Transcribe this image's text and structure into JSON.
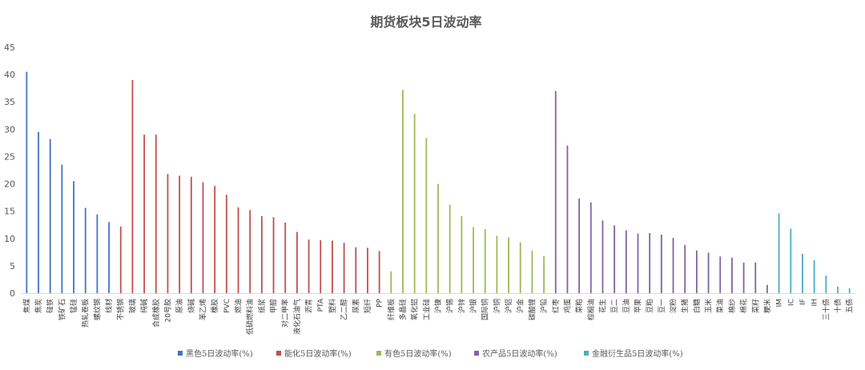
{
  "chart_data": {
    "type": "bar",
    "title": "期货板块5日波动率",
    "xlabel": "",
    "ylabel": "",
    "ylim": [
      0,
      45
    ],
    "yticks": [
      0,
      5,
      10,
      15,
      20,
      25,
      30,
      35,
      40,
      45
    ],
    "grid": false,
    "legend_position": "bottom",
    "series": [
      {
        "name": "黑色5日波动率(%)",
        "color": "#4472C4",
        "categories": [
          "焦煤",
          "焦炭",
          "硅铁",
          "铁矿石",
          "锰硅",
          "热轧卷板",
          "螺纹钢",
          "线材"
        ],
        "values": [
          40.5,
          29.5,
          28.2,
          23.5,
          20.5,
          15.6,
          14.4,
          13.0
        ]
      },
      {
        "name": "能化5日波动率(%)",
        "color": "#C0504D",
        "categories": [
          "不锈钢",
          "玻璃",
          "纯碱",
          "合成橡胶",
          "20号胶",
          "原油",
          "烧碱",
          "苯乙烯",
          "橡胶",
          "PVC",
          "燃油",
          "低硫燃料油",
          "纸浆",
          "甲醇",
          "对二甲苯",
          "液化石油气",
          "沥青",
          "PTA",
          "塑料",
          "乙二醇",
          "尿素",
          "短纤",
          "PP"
        ],
        "values": [
          12.2,
          39.0,
          29.0,
          29.0,
          21.8,
          21.5,
          21.3,
          20.3,
          19.6,
          18.0,
          15.7,
          15.2,
          14.1,
          13.9,
          12.9,
          11.2,
          9.8,
          9.7,
          9.6,
          9.2,
          8.4,
          8.3,
          7.7
        ]
      },
      {
        "name": "有色5日波动率(%)",
        "color": "#9BBB59",
        "categories": [
          "纤维板",
          "多晶硅",
          "氧化铝",
          "工业硅",
          "沪镍",
          "沪锡",
          "沪锌",
          "沪银",
          "国际铜",
          "沪铜",
          "沪铝",
          "沪金",
          "碳酸锂",
          "沪铅"
        ],
        "values": [
          4.0,
          37.2,
          32.8,
          28.4,
          20.0,
          16.2,
          14.1,
          12.1,
          11.7,
          10.5,
          10.2,
          9.3,
          7.8,
          6.8
        ]
      },
      {
        "name": "农产品5日波动率(%)",
        "color": "#8064A2",
        "categories": [
          "红枣",
          "鸡蛋",
          "菜粕",
          "棕榈油",
          "花生",
          "豆二",
          "豆油",
          "苹果",
          "豆粕",
          "豆一",
          "淀粉",
          "生猪",
          "白糖",
          "玉米",
          "菜油",
          "棉纱",
          "棉花",
          "菜籽",
          "粳米"
        ],
        "values": [
          37.0,
          27.0,
          17.3,
          16.6,
          13.3,
          12.4,
          11.5,
          10.9,
          11.0,
          10.7,
          10.1,
          8.8,
          7.8,
          7.4,
          6.7,
          6.5,
          5.6,
          5.6,
          1.5
        ]
      },
      {
        "name": "金融衍生品5日波动率(%)",
        "color": "#4BACC6",
        "categories": [
          "IM",
          "IC",
          "IF",
          "IH",
          "三十债",
          "十债",
          "五债"
        ],
        "values": [
          14.6,
          11.8,
          7.2,
          6.0,
          3.2,
          1.2,
          0.9
        ]
      }
    ]
  }
}
